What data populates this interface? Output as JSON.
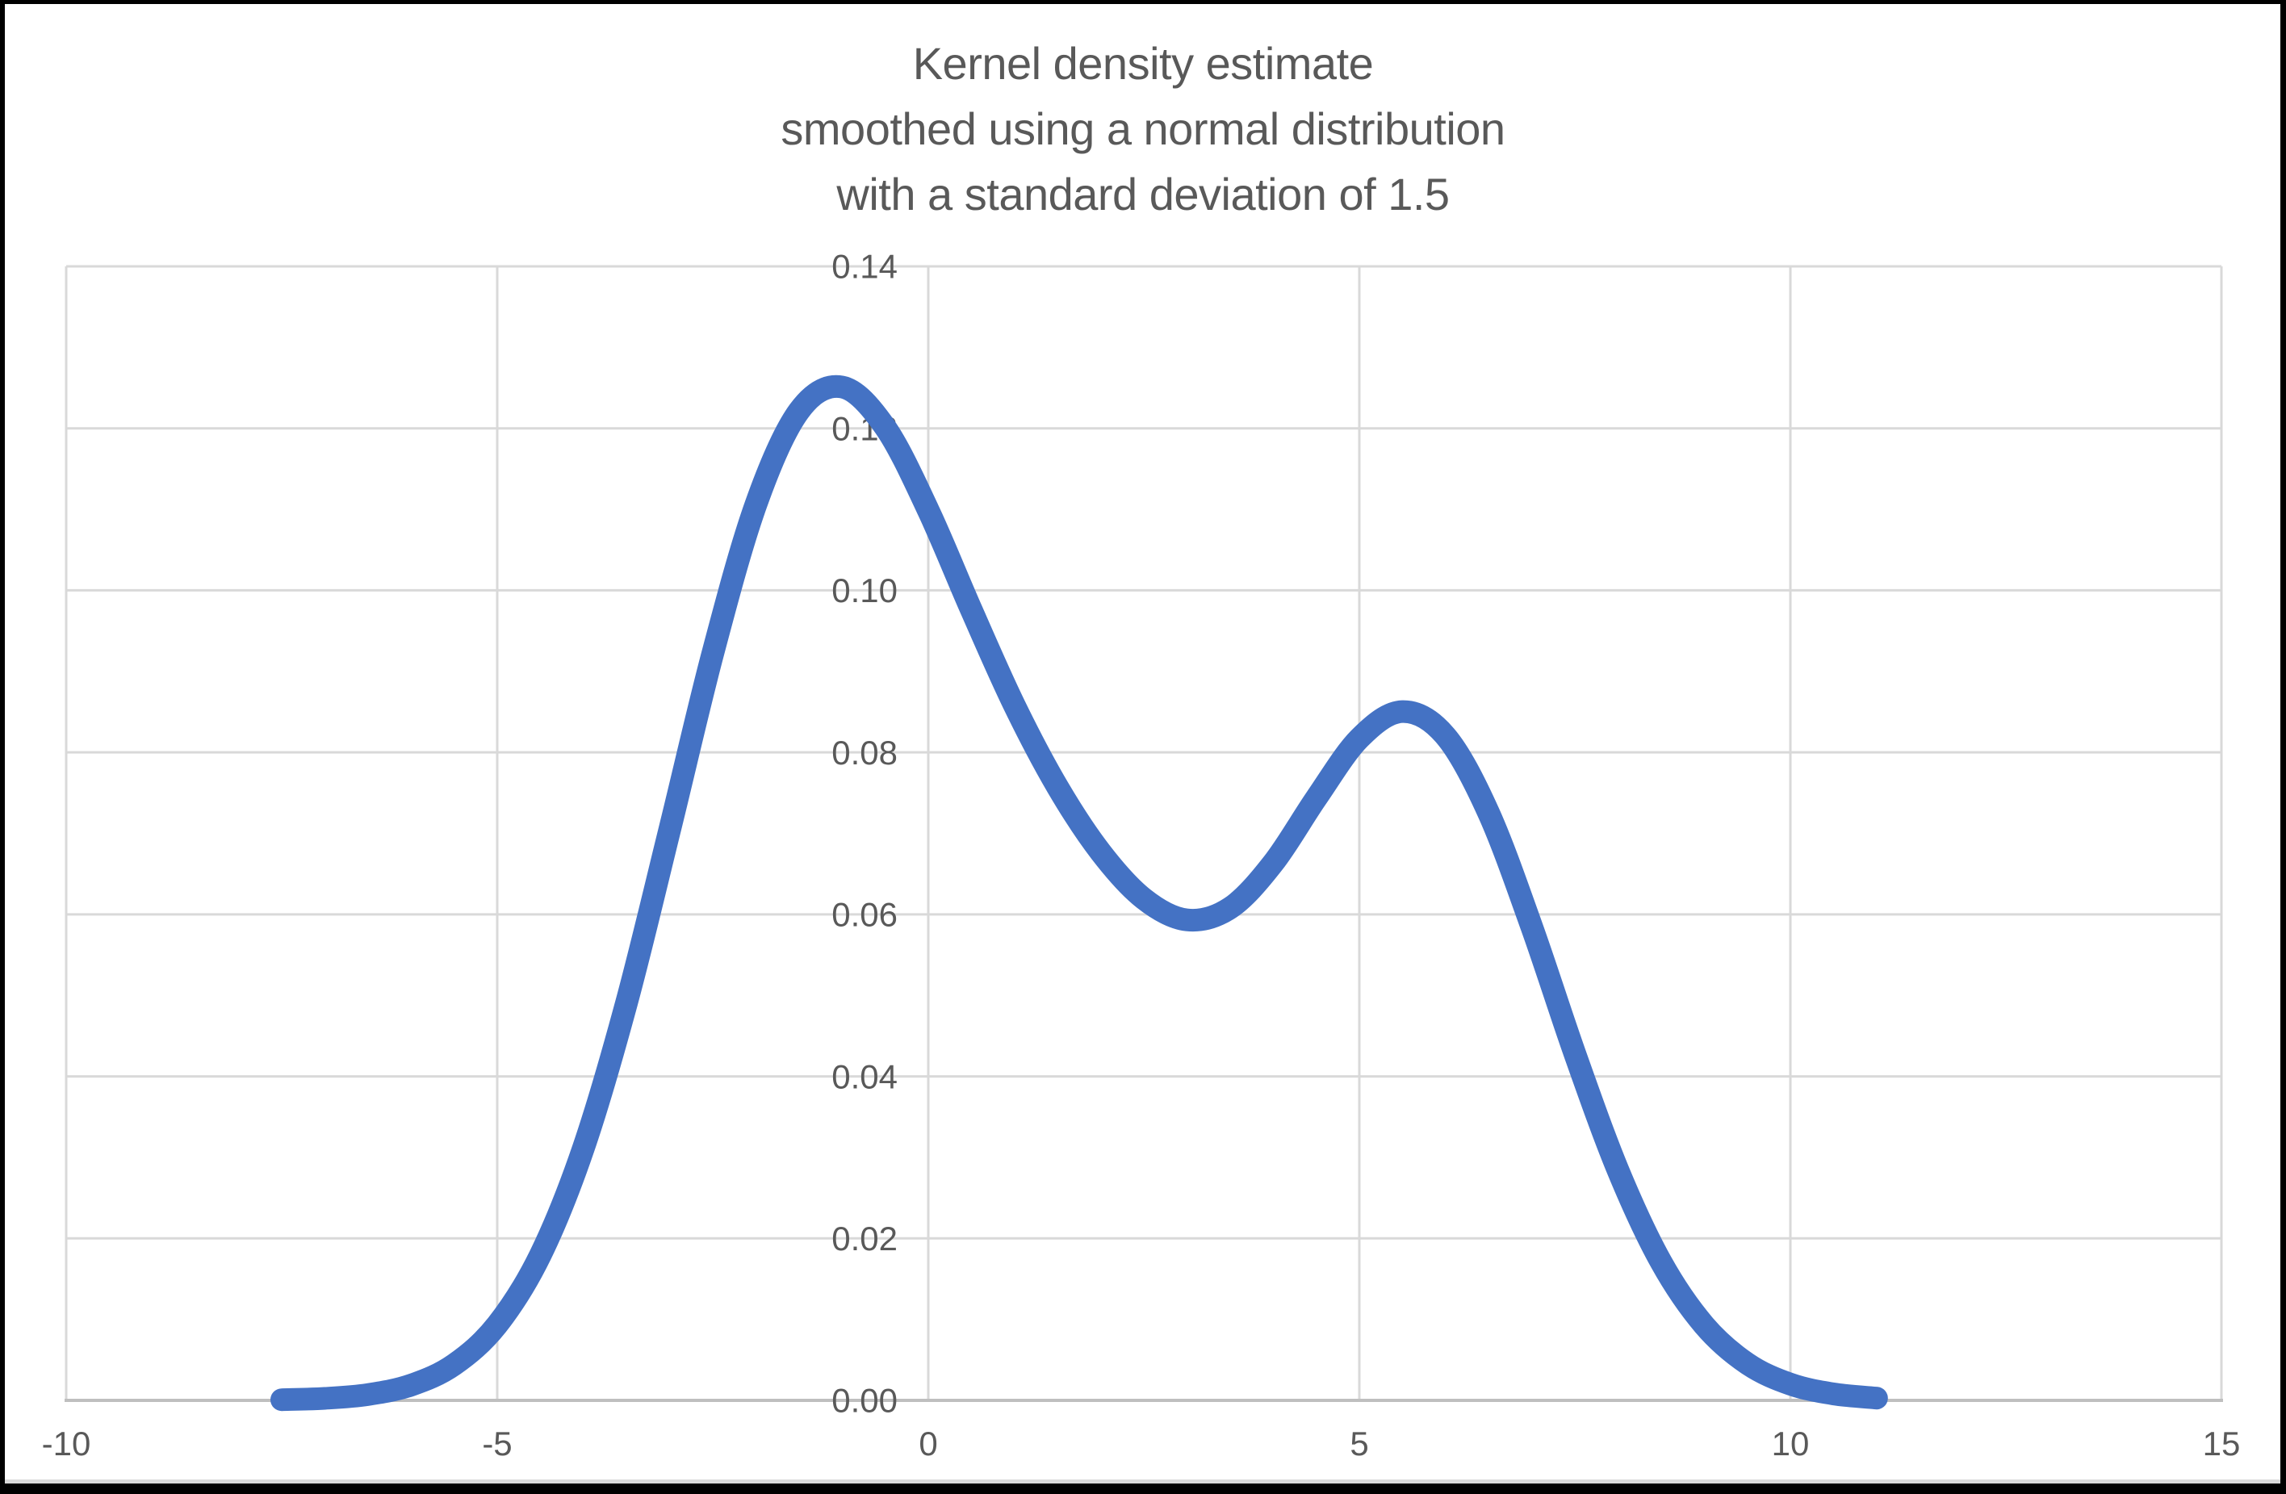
{
  "window": {
    "background": "#ffffff",
    "border_color": "#000000"
  },
  "title": {
    "line1": "Kernel density estimate",
    "line2": "smoothed using a normal distribution",
    "line3": "with a standard deviation of 1.5",
    "color": "#595959"
  },
  "chart_data": {
    "type": "line",
    "title": "Kernel density estimate smoothed using a normal distribution with a standard deviation of 1.5",
    "xlabel": "",
    "ylabel": "",
    "xlim": [
      -10,
      15
    ],
    "ylim": [
      0,
      0.14
    ],
    "grid": true,
    "legend": false,
    "x_ticks": [
      {
        "v": -10,
        "label": "-10"
      },
      {
        "v": -5,
        "label": "-5"
      },
      {
        "v": 0,
        "label": "0"
      },
      {
        "v": 5,
        "label": "5"
      },
      {
        "v": 10,
        "label": "10"
      },
      {
        "v": 15,
        "label": "15"
      }
    ],
    "y_ticks": [
      {
        "v": 0.0,
        "label": "0.00"
      },
      {
        "v": 0.02,
        "label": "0.02"
      },
      {
        "v": 0.04,
        "label": "0.04"
      },
      {
        "v": 0.06,
        "label": "0.06"
      },
      {
        "v": 0.08,
        "label": "0.08"
      },
      {
        "v": 0.1,
        "label": "0.10"
      },
      {
        "v": 0.12,
        "label": "0.12"
      },
      {
        "v": 0.14,
        "label": "0.14"
      }
    ],
    "series": [
      {
        "name": "kernel-density-estimate",
        "color": "#4472C4",
        "stroke_width": 28,
        "x": [
          -7.5,
          -7,
          -6.5,
          -6,
          -5.5,
          -5,
          -4.5,
          -4,
          -3.5,
          -3,
          -2.5,
          -2,
          -1.5,
          -1,
          -0.5,
          0,
          0.5,
          1,
          1.5,
          2,
          2.5,
          3,
          3.5,
          4,
          4.5,
          5,
          5.5,
          6,
          6.5,
          7,
          7.5,
          8,
          8.5,
          9,
          9.5,
          10,
          10.5,
          11
        ],
        "y": [
          8e-05,
          0.00025,
          0.00072,
          0.00188,
          0.00441,
          0.00935,
          0.01794,
          0.03115,
          0.04909,
          0.07043,
          0.0922,
          0.11059,
          0.12213,
          0.1251,
          0.12014,
          0.10988,
          0.09758,
          0.08578,
          0.07572,
          0.06767,
          0.06193,
          0.05932,
          0.06078,
          0.06632,
          0.07434,
          0.08172,
          0.08504,
          0.08202,
          0.07252,
          0.05846,
          0.04281,
          0.02843,
          0.01708,
          0.00928,
          0.00454,
          0.002,
          0.0008,
          0.00028
        ]
      }
    ],
    "colors": {
      "gridline": "#D9D9D9",
      "axis_line": "#BFBFBF",
      "tick_label": "#595959"
    }
  }
}
